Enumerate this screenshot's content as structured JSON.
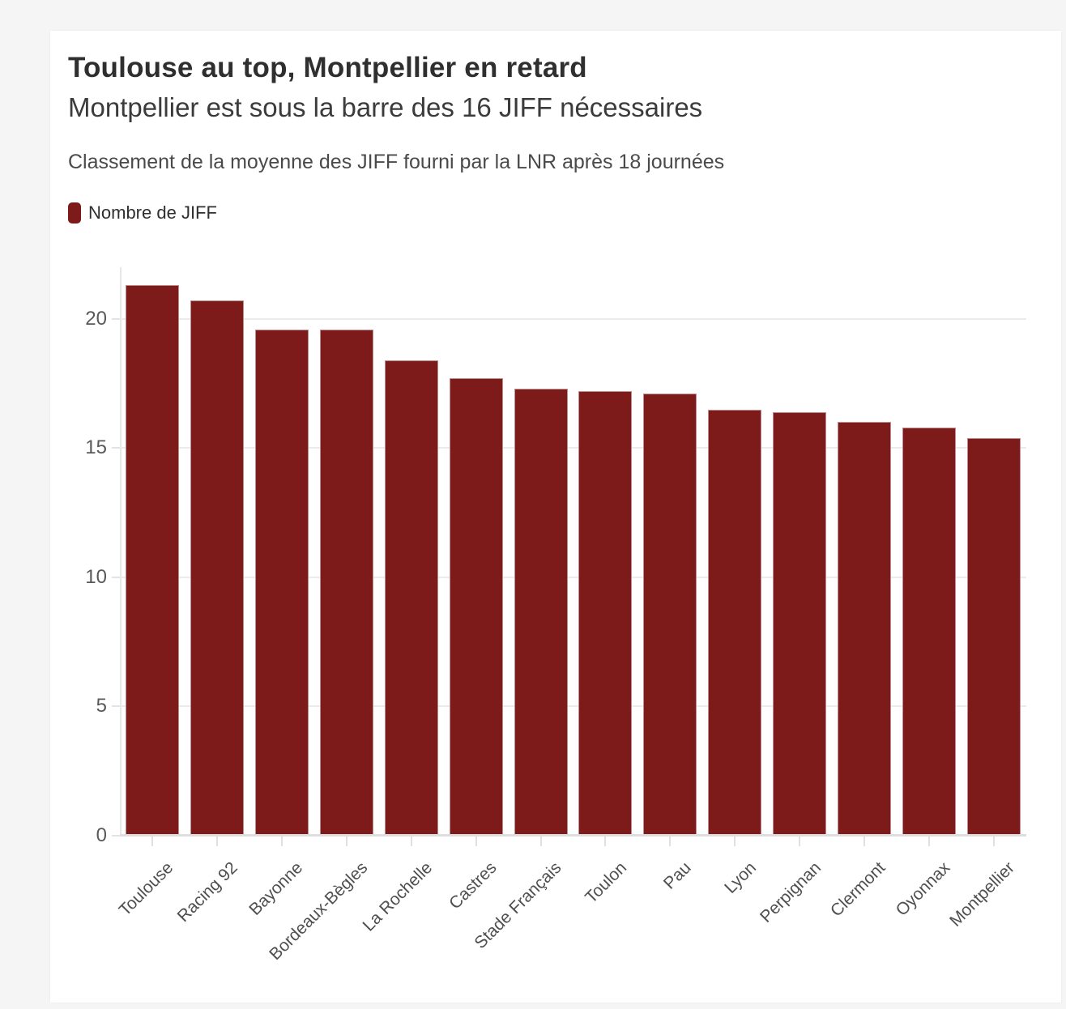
{
  "page": {
    "background_color": "#f5f5f6",
    "card_background_color": "#ffffff"
  },
  "header": {
    "title": "Toulouse au top, Montpellier en retard",
    "subtitle": "Montpellier est sous la barre des 16 JIFF nécessaires",
    "description": "Classement de la moyenne des JIFF fourni par la LNR après 18 journées"
  },
  "legend": {
    "label": "Nombre de JIFF",
    "color": "#7d1a1a"
  },
  "chart_data": {
    "type": "bar",
    "title": "Toulouse au top, Montpellier en retard",
    "subtitle": "Montpellier est sous la barre des 16 JIFF nécessaires",
    "annotation": "Classement de la moyenne des JIFF fourni par la LNR après 18 journées",
    "series_name": "Nombre de JIFF",
    "categories": [
      "Toulouse",
      "Racing 92",
      "Bayonne",
      "Bordeaux-Bègles",
      "La Rochelle",
      "Castres",
      "Stade Français",
      "Toulon",
      "Pau",
      "Lyon",
      "Perpignan",
      "Clermont",
      "Oyonnax",
      "Montpellier"
    ],
    "values": [
      21.3,
      20.7,
      19.6,
      19.6,
      18.4,
      17.7,
      17.3,
      17.2,
      17.1,
      16.5,
      16.4,
      16.0,
      15.8,
      15.4
    ],
    "bar_color": "#7d1a1a",
    "xlabel": "",
    "ylabel": "",
    "ylim": [
      0,
      22
    ],
    "yticks": [
      0,
      5,
      10,
      15,
      20
    ],
    "ytick_labels": [
      "0",
      "5",
      "10",
      "15",
      "20"
    ],
    "grid": true,
    "gridline_color": "#ebebeb",
    "legend_position": "top-left",
    "x_label_rotation": -45
  }
}
